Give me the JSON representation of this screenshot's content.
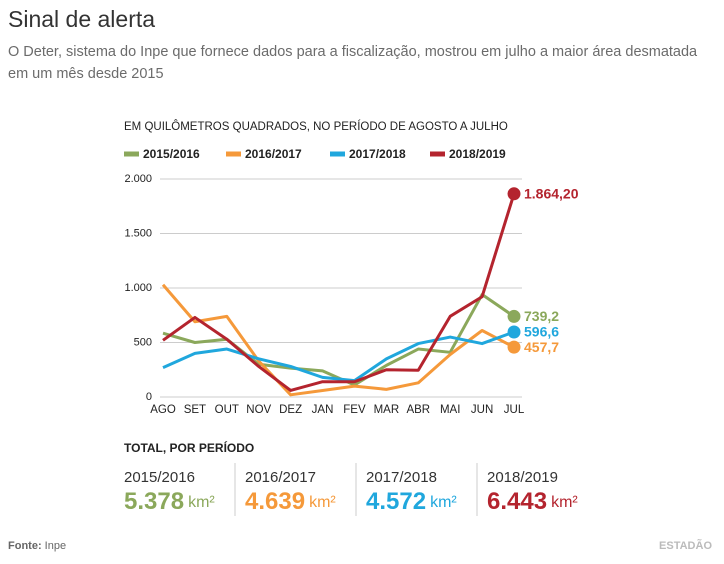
{
  "header": {
    "title": "Sinal de alerta",
    "subtitle": "O Deter, sistema do Inpe que fornece dados para a fiscalização, mostrou em julho a maior área desmatada em um mês desde 2015"
  },
  "chart_data": {
    "type": "line",
    "title": "EM QUILÔMETROS QUADRADOS, NO PERÍODO DE AGOSTO A JULHO",
    "categories": [
      "AGO",
      "SET",
      "OUT",
      "NOV",
      "DEZ",
      "JAN",
      "FEV",
      "MAR",
      "ABR",
      "MAI",
      "JUN",
      "JUL"
    ],
    "series": [
      {
        "name": "2015/2016",
        "color": "#8ba85b",
        "values": [
          585,
          500,
          530,
          300,
          265,
          240,
          110,
          290,
          440,
          410,
          940,
          739.2
        ],
        "value_labels": [
          null,
          null,
          null,
          null,
          null,
          null,
          null,
          null,
          null,
          null,
          null,
          "739,2"
        ]
      },
      {
        "name": "2016/2017",
        "color": "#f5993a",
        "values": [
          1030,
          690,
          740,
          330,
          20,
          60,
          100,
          70,
          130,
          390,
          610,
          457.7
        ],
        "value_labels": [
          null,
          null,
          null,
          null,
          null,
          null,
          null,
          null,
          null,
          null,
          null,
          "457,7"
        ]
      },
      {
        "name": "2017/2018",
        "color": "#20a7dd",
        "values": [
          270,
          400,
          440,
          350,
          280,
          180,
          150,
          350,
          490,
          550,
          490,
          596.6
        ],
        "value_labels": [
          null,
          null,
          null,
          null,
          null,
          null,
          null,
          null,
          null,
          null,
          null,
          "596,6"
        ]
      },
      {
        "name": "2018/2019",
        "color": "#b4242e",
        "values": [
          520,
          730,
          530,
          280,
          60,
          140,
          140,
          250,
          245,
          740,
          920,
          1864.2
        ],
        "value_labels": [
          null,
          null,
          null,
          null,
          null,
          null,
          null,
          null,
          null,
          null,
          null,
          "1.864,20"
        ]
      }
    ],
    "ylim": [
      0,
      2000
    ],
    "yticks": [
      0,
      500,
      {
        "value": 1000,
        "label": "1.000"
      },
      {
        "value": 1500,
        "label": "1.500"
      },
      {
        "value": 2000,
        "label": "2.000"
      }
    ],
    "grid": true
  },
  "totals": {
    "title": "TOTAL, POR PERÍODO",
    "items": [
      {
        "period": "2015/2016",
        "value": "5.378",
        "unit": "km²"
      },
      {
        "period": "2016/2017",
        "value": "4.639",
        "unit": "km²"
      },
      {
        "period": "2017/2018",
        "value": "4.572",
        "unit": "km²"
      },
      {
        "period": "2018/2019",
        "value": "6.443",
        "unit": "km²"
      }
    ]
  },
  "footer": {
    "source_label": "Fonte:",
    "source": "Inpe",
    "logo": "ESTADÃO"
  }
}
